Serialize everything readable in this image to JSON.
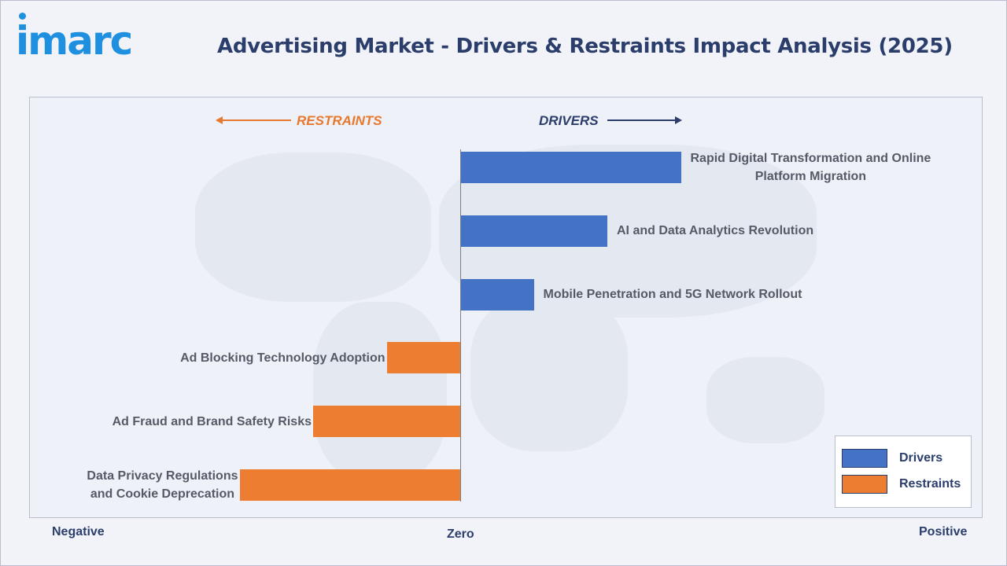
{
  "header": {
    "logo_text": "imarc",
    "title": "Advertising Market - Drivers & Restraints Impact Analysis (2025)"
  },
  "direction_labels": {
    "restraints": "RESTRAINTS",
    "drivers": "DRIVERS"
  },
  "axis_labels": {
    "negative": "Negative",
    "zero": "Zero",
    "positive": "Positive"
  },
  "colors": {
    "drivers": "#4472c4",
    "restraints": "#ed7d31",
    "title": "#2b3d6b",
    "accent": "#1f8fe0"
  },
  "chart_data": {
    "type": "bar",
    "orientation": "horizontal",
    "xlim": [
      -3,
      3
    ],
    "grid": false,
    "legend_position": "bottom-right",
    "categories": [
      "Rapid Digital Transformation and Online Platform Migration",
      "AI and Data Analytics Revolution",
      "Mobile Penetration and 5G Network Rollout",
      "Ad Blocking Technology Adoption",
      "Ad Fraud and Brand Safety Risks",
      "Data Privacy Regulations and Cookie Deprecation"
    ],
    "label_lines": [
      [
        "Rapid Digital Transformation and Online",
        "Platform Migration"
      ],
      [
        "AI and Data Analytics Revolution"
      ],
      [
        "Mobile Penetration and 5G Network Rollout"
      ],
      [
        "Ad Blocking Technology Adoption"
      ],
      [
        "Ad Fraud and Brand Safety Risks"
      ],
      [
        "Data Privacy Regulations",
        "and Cookie Deprecation"
      ]
    ],
    "values": [
      1.5,
      1.0,
      0.5,
      -0.5,
      -1.0,
      -1.5
    ],
    "series": [
      {
        "name": "Drivers",
        "values": [
          1.5,
          1.0,
          0.5,
          0,
          0,
          0
        ]
      },
      {
        "name": "Restraints",
        "values": [
          0,
          0,
          0,
          -0.5,
          -1.0,
          -1.5
        ]
      }
    ]
  }
}
